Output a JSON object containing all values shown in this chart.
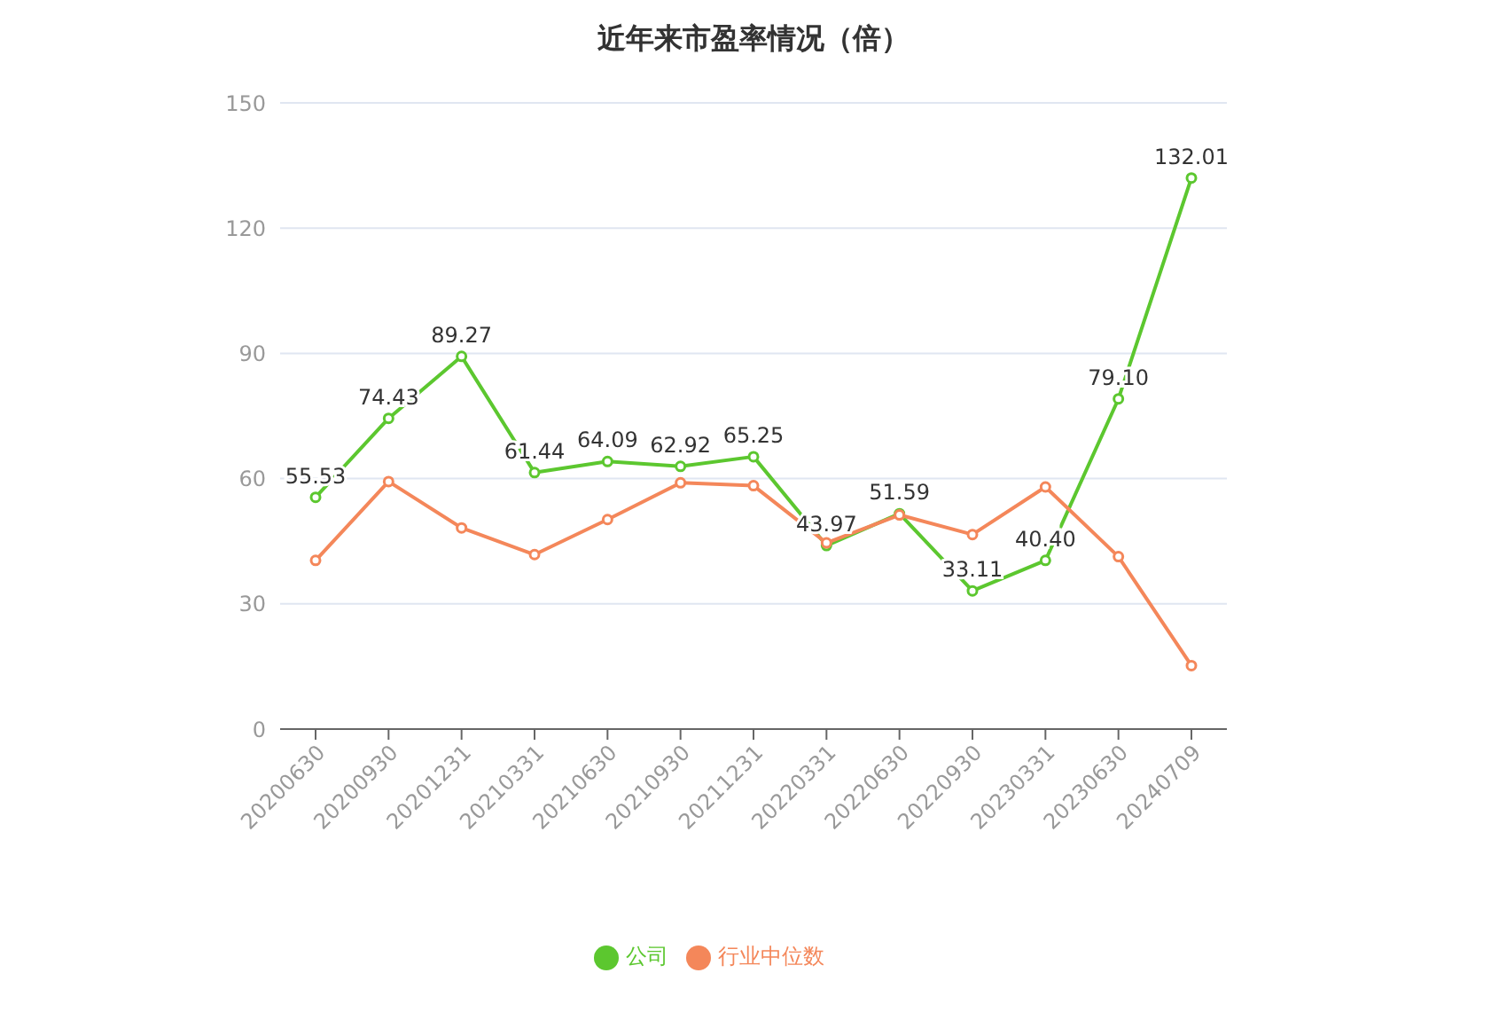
{
  "chart_data": {
    "type": "line",
    "title": "近年来市盈率情况（倍）",
    "categories": [
      "20200630",
      "20200930",
      "20201231",
      "20210331",
      "20210630",
      "20210930",
      "20211231",
      "20220331",
      "20220630",
      "20220930",
      "20230331",
      "20230630",
      "20240709"
    ],
    "series": [
      {
        "name": "公司",
        "color": "#5cc72f",
        "values": [
          55.53,
          74.43,
          89.27,
          61.44,
          64.09,
          62.92,
          65.25,
          43.97,
          51.59,
          33.11,
          40.4,
          79.1,
          132.01
        ],
        "value_labels": [
          "55.53",
          "74.43",
          "89.27",
          "61.44",
          "64.09",
          "62.92",
          "65.25",
          "43.97",
          "51.59",
          "33.11",
          "40.40",
          "79.10",
          "132.01"
        ]
      },
      {
        "name": "行业中位数",
        "color": "#f4875a",
        "values": [
          40.4,
          59.3,
          48.2,
          41.8,
          50.2,
          59.0,
          58.3,
          44.6,
          51.3,
          46.6,
          58.0,
          41.3,
          15.2
        ]
      }
    ],
    "ylim": [
      0,
      150
    ],
    "yticks": [
      0,
      30,
      60,
      90,
      120,
      150
    ],
    "grid": "y",
    "legend": "bottom",
    "marker": "circle",
    "line_style": "solid"
  }
}
